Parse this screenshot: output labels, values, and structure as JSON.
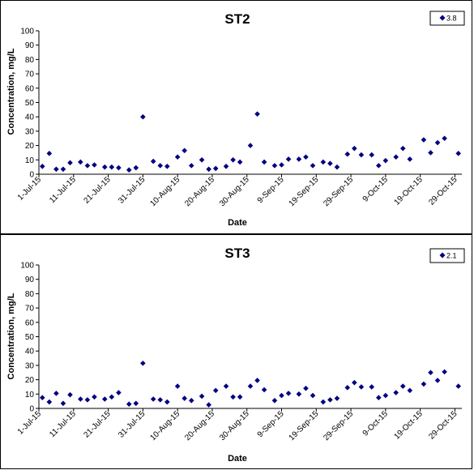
{
  "charts": [
    {
      "title": "ST2",
      "xlabel": "Date",
      "ylabel": "Concentration, mg/L",
      "legend": "3.8"
    },
    {
      "title": "ST3",
      "xlabel": "Date",
      "ylabel": "Concentration, mg/L",
      "legend": "2.1"
    }
  ],
  "chart_data": [
    {
      "type": "scatter",
      "title": "ST2",
      "xlabel": "Date",
      "ylabel": "Concentration, mg/L",
      "ylim": [
        0,
        100
      ],
      "yticks": [
        0,
        10,
        20,
        30,
        40,
        50,
        60,
        70,
        80,
        90,
        100
      ],
      "xlim": [
        "2015-07-01",
        "2015-10-31"
      ],
      "xticks": [
        "1-Jul-15",
        "11-Jul-15",
        "21-Jul-15",
        "31-Jul-15",
        "10-Aug-15",
        "20-Aug-15",
        "30-Aug-15",
        "9-Sep-15",
        "19-Sep-15",
        "29-Sep-15",
        "9-Oct-15",
        "19-Oct-15",
        "29-Oct-15"
      ],
      "grid": false,
      "legend_position": "top-right",
      "marker_color": "#000080",
      "series": [
        {
          "name": "3.8",
          "points": [
            [
              "2015-07-02",
              5.5
            ],
            [
              "2015-07-04",
              14.5
            ],
            [
              "2015-07-06",
              3.5
            ],
            [
              "2015-07-08",
              3.5
            ],
            [
              "2015-07-10",
              8
            ],
            [
              "2015-07-13",
              8.5
            ],
            [
              "2015-07-15",
              6
            ],
            [
              "2015-07-17",
              6.5
            ],
            [
              "2015-07-20",
              5
            ],
            [
              "2015-07-22",
              5
            ],
            [
              "2015-07-24",
              4.5
            ],
            [
              "2015-07-27",
              3
            ],
            [
              "2015-07-29",
              4.5
            ],
            [
              "2015-07-31",
              40
            ],
            [
              "2015-08-03",
              9
            ],
            [
              "2015-08-05",
              6
            ],
            [
              "2015-08-07",
              5.5
            ],
            [
              "2015-08-10",
              12
            ],
            [
              "2015-08-12",
              16.5
            ],
            [
              "2015-08-14",
              6
            ],
            [
              "2015-08-17",
              10
            ],
            [
              "2015-08-19",
              3.5
            ],
            [
              "2015-08-21",
              4
            ],
            [
              "2015-08-24",
              5.5
            ],
            [
              "2015-08-26",
              10
            ],
            [
              "2015-08-28",
              8.5
            ],
            [
              "2015-08-31",
              20
            ],
            [
              "2015-09-02",
              42
            ],
            [
              "2015-09-04",
              8.5
            ],
            [
              "2015-09-07",
              6
            ],
            [
              "2015-09-09",
              6.5
            ],
            [
              "2015-09-11",
              10.5
            ],
            [
              "2015-09-14",
              10.5
            ],
            [
              "2015-09-16",
              12
            ],
            [
              "2015-09-18",
              6
            ],
            [
              "2015-09-21",
              8.5
            ],
            [
              "2015-09-23",
              7.5
            ],
            [
              "2015-09-25",
              5
            ],
            [
              "2015-09-28",
              14
            ],
            [
              "2015-09-30",
              18
            ],
            [
              "2015-10-02",
              13.5
            ],
            [
              "2015-10-05",
              13.5
            ],
            [
              "2015-10-07",
              6
            ],
            [
              "2015-10-09",
              9.5
            ],
            [
              "2015-10-12",
              12
            ],
            [
              "2015-10-14",
              18
            ],
            [
              "2015-10-16",
              10.5
            ],
            [
              "2015-10-20",
              24
            ],
            [
              "2015-10-22",
              15
            ],
            [
              "2015-10-24",
              22
            ],
            [
              "2015-10-26",
              25
            ],
            [
              "2015-10-30",
              14.5
            ]
          ]
        }
      ]
    },
    {
      "type": "scatter",
      "title": "ST3",
      "xlabel": "Date",
      "ylabel": "Concentration, mg/L",
      "ylim": [
        0,
        100
      ],
      "yticks": [
        0,
        10,
        20,
        30,
        40,
        50,
        60,
        70,
        80,
        90,
        100
      ],
      "xlim": [
        "2015-07-01",
        "2015-10-31"
      ],
      "xticks": [
        "1-Jul-15",
        "11-Jul-15",
        "21-Jul-15",
        "31-Jul-15",
        "10-Aug-15",
        "20-Aug-15",
        "30-Aug-15",
        "9-Sep-15",
        "19-Sep-15",
        "29-Sep-15",
        "9-Oct-15",
        "19-Oct-15",
        "29-Oct-15"
      ],
      "grid": false,
      "legend_position": "top-right",
      "marker_color": "#000080",
      "series": [
        {
          "name": "2.1",
          "points": [
            [
              "2015-07-02",
              7.5
            ],
            [
              "2015-07-04",
              4.5
            ],
            [
              "2015-07-06",
              10.5
            ],
            [
              "2015-07-08",
              3.5
            ],
            [
              "2015-07-10",
              9.5
            ],
            [
              "2015-07-13",
              6.5
            ],
            [
              "2015-07-15",
              6
            ],
            [
              "2015-07-17",
              8
            ],
            [
              "2015-07-20",
              6.5
            ],
            [
              "2015-07-22",
              8
            ],
            [
              "2015-07-24",
              11
            ],
            [
              "2015-07-27",
              3
            ],
            [
              "2015-07-29",
              3.5
            ],
            [
              "2015-07-31",
              31.5
            ],
            [
              "2015-08-03",
              6.5
            ],
            [
              "2015-08-05",
              6
            ],
            [
              "2015-08-07",
              4.5
            ],
            [
              "2015-08-10",
              15.5
            ],
            [
              "2015-08-12",
              7
            ],
            [
              "2015-08-14",
              5.5
            ],
            [
              "2015-08-17",
              8.5
            ],
            [
              "2015-08-19",
              2.5
            ],
            [
              "2015-08-21",
              12.5
            ],
            [
              "2015-08-24",
              15.5
            ],
            [
              "2015-08-26",
              8
            ],
            [
              "2015-08-28",
              8
            ],
            [
              "2015-08-31",
              15.5
            ],
            [
              "2015-09-02",
              19.5
            ],
            [
              "2015-09-04",
              13
            ],
            [
              "2015-09-07",
              5.5
            ],
            [
              "2015-09-09",
              9
            ],
            [
              "2015-09-11",
              10.5
            ],
            [
              "2015-09-14",
              10
            ],
            [
              "2015-09-16",
              14
            ],
            [
              "2015-09-18",
              9
            ],
            [
              "2015-09-21",
              4.5
            ],
            [
              "2015-09-23",
              6
            ],
            [
              "2015-09-25",
              7
            ],
            [
              "2015-09-28",
              14.5
            ],
            [
              "2015-09-30",
              18
            ],
            [
              "2015-10-02",
              15
            ],
            [
              "2015-10-05",
              15
            ],
            [
              "2015-10-07",
              7.5
            ],
            [
              "2015-10-09",
              9
            ],
            [
              "2015-10-12",
              11
            ],
            [
              "2015-10-14",
              15.5
            ],
            [
              "2015-10-16",
              12.5
            ],
            [
              "2015-10-20",
              17
            ],
            [
              "2015-10-22",
              25
            ],
            [
              "2015-10-24",
              19.5
            ],
            [
              "2015-10-26",
              25.5
            ],
            [
              "2015-10-30",
              15.5
            ]
          ]
        }
      ]
    }
  ]
}
